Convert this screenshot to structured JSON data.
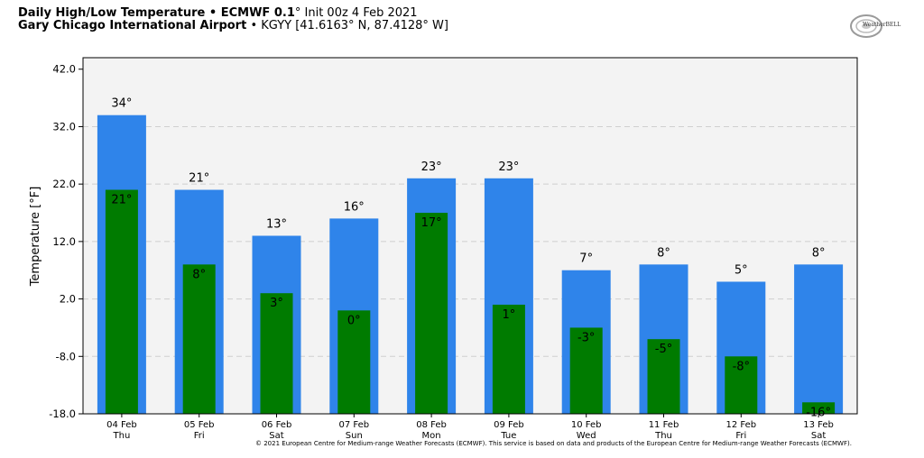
{
  "header": {
    "line1_bold": "Daily High/Low Temperature • ECMWF 0.1",
    "line1_rest": "° Init 00z 4 Feb 2021",
    "line2_bold": "Gary Chicago International Airport",
    "line2_rest": " • KGYY [41.6163° N, 87.4128° W]"
  },
  "logo": {
    "text": "WeatherBELL",
    "icon": "weatherbell-swirl-logo"
  },
  "footer": {
    "text": "© 2021 European Centre for Medium-range Weather Forecasts (ECMWF). This service is based on data and products of the European Centre for Medium-range Weather Forecasts (ECMWF)."
  },
  "chart_data": {
    "type": "bar",
    "ylabel": "Temperature [°F]",
    "ylim": [
      -18,
      44
    ],
    "yticks": [
      "42.0",
      "32.0",
      "22.0",
      "12.0",
      "2.0",
      "-8.0",
      "-18.0"
    ],
    "grid": true,
    "categories": [
      {
        "date": "04 Feb",
        "day": "Thu"
      },
      {
        "date": "05 Feb",
        "day": "Fri"
      },
      {
        "date": "06 Feb",
        "day": "Sat"
      },
      {
        "date": "07 Feb",
        "day": "Sun"
      },
      {
        "date": "08 Feb",
        "day": "Mon"
      },
      {
        "date": "09 Feb",
        "day": "Tue"
      },
      {
        "date": "10 Feb",
        "day": "Wed"
      },
      {
        "date": "11 Feb",
        "day": "Thu"
      },
      {
        "date": "12 Feb",
        "day": "Fri"
      },
      {
        "date": "13 Feb",
        "day": "Sat"
      }
    ],
    "series": [
      {
        "values": [
          34,
          21,
          13,
          16,
          23,
          23,
          7,
          8,
          5,
          8
        ],
        "labels": [
          "34°",
          "21°",
          "13°",
          "16°",
          "23°",
          "23°",
          "7°",
          "8°",
          "5°",
          "8°"
        ],
        "color": "#2f84ea"
      },
      {
        "values": [
          21,
          8,
          3,
          0,
          17,
          1,
          -3,
          -5,
          -8,
          -16
        ],
        "labels": [
          "21°",
          "8°",
          "3°",
          "0°",
          "17°",
          "1°",
          "-3°",
          "-5°",
          "-8°",
          "-16°"
        ],
        "color": "#007b00"
      }
    ]
  }
}
